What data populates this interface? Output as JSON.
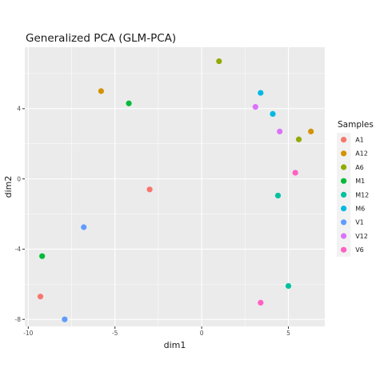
{
  "chart_data": {
    "type": "scatter",
    "title": "Generalized PCA (GLM-PCA)",
    "xlabel": "dim1",
    "ylabel": "dim2",
    "xlim": [
      -10.2,
      7.1
    ],
    "ylim": [
      -8.4,
      7.5
    ],
    "x_ticks": [
      -10,
      -5,
      0,
      5
    ],
    "x_tick_labels": [
      "-10",
      "-5",
      "0",
      "5"
    ],
    "y_ticks": [
      -8,
      -4,
      0,
      4
    ],
    "y_tick_labels": [
      "-8",
      "-4",
      "0",
      "4"
    ],
    "grid": true,
    "legend": {
      "title": "Samples",
      "position": "right"
    },
    "series": [
      {
        "name": "A1",
        "color": "#F8766D",
        "points": [
          [
            -3.0,
            -0.6
          ],
          [
            -9.3,
            -6.7
          ]
        ]
      },
      {
        "name": "A12",
        "color": "#D39200",
        "points": [
          [
            -5.8,
            5.0
          ],
          [
            6.3,
            2.7
          ]
        ]
      },
      {
        "name": "A6",
        "color": "#93AA00",
        "points": [
          [
            1.0,
            6.7
          ],
          [
            5.6,
            2.25
          ]
        ]
      },
      {
        "name": "M1",
        "color": "#00BA38",
        "points": [
          [
            -4.2,
            4.3
          ],
          [
            -9.2,
            -4.4
          ]
        ]
      },
      {
        "name": "M12",
        "color": "#00C19F",
        "points": [
          [
            4.4,
            -0.95
          ],
          [
            5.0,
            -6.1
          ]
        ]
      },
      {
        "name": "M6",
        "color": "#00B9E3",
        "points": [
          [
            3.4,
            4.9
          ],
          [
            4.1,
            3.7
          ]
        ]
      },
      {
        "name": "V1",
        "color": "#619CFF",
        "points": [
          [
            -6.8,
            -2.75
          ],
          [
            -7.9,
            -8.0
          ]
        ]
      },
      {
        "name": "V12",
        "color": "#DB72FB",
        "points": [
          [
            3.1,
            4.1
          ],
          [
            4.5,
            2.7
          ]
        ]
      },
      {
        "name": "V6",
        "color": "#FF61C3",
        "points": [
          [
            5.4,
            0.35
          ],
          [
            3.4,
            -7.05
          ]
        ]
      }
    ]
  }
}
